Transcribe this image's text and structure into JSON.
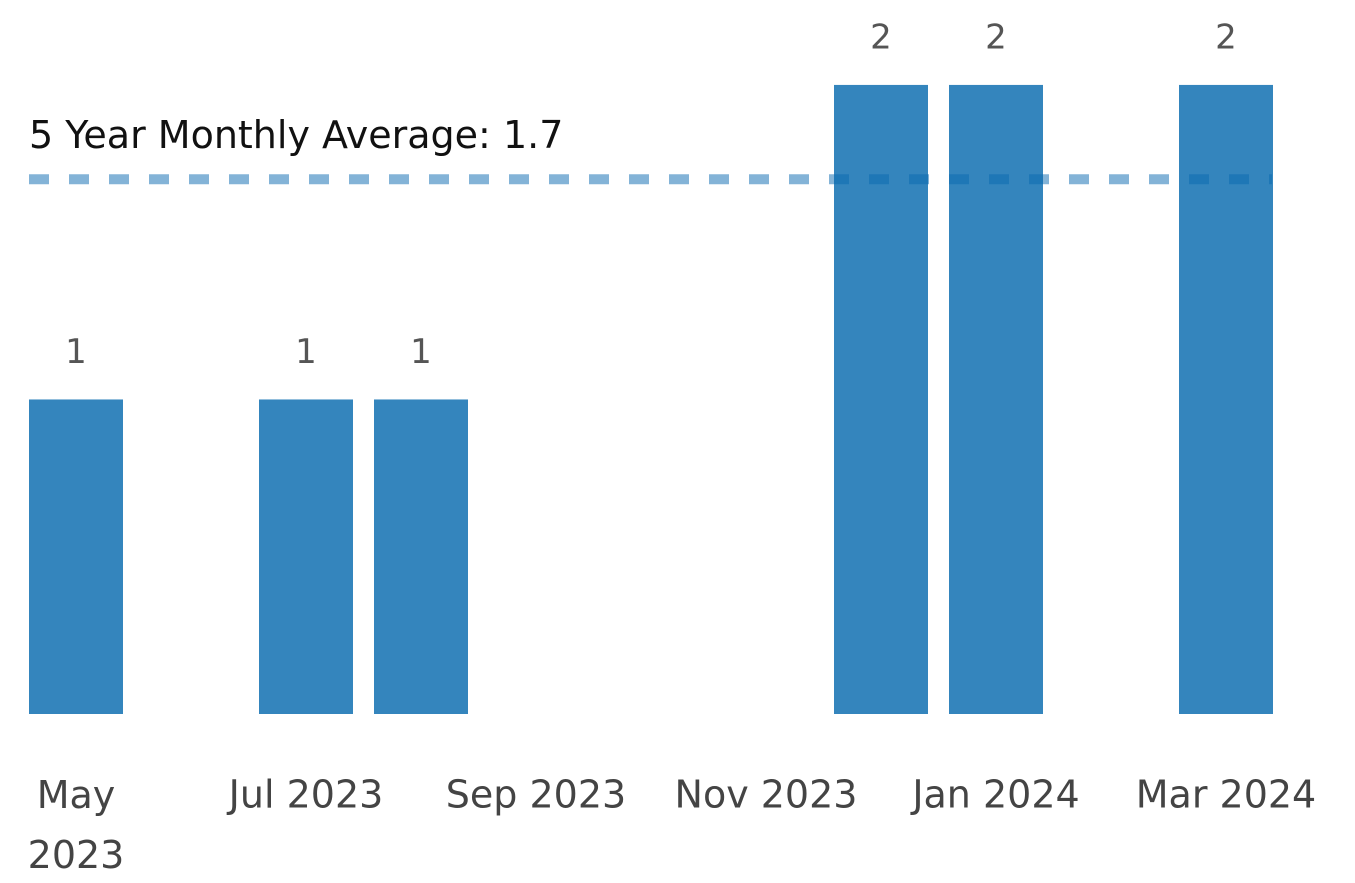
{
  "chart_data": {
    "type": "bar",
    "categories": [
      "May 2023",
      null,
      "Jul 2023",
      null,
      "Sep 2023",
      null,
      "Nov 2023",
      null,
      "Jan 2024",
      null,
      "Mar 2024"
    ],
    "values": [
      1,
      null,
      1,
      1,
      null,
      null,
      null,
      2,
      2,
      null,
      2
    ],
    "color": "#3485bd",
    "ylim": [
      0,
      2.27
    ],
    "reference_line": {
      "value": 1.7,
      "label": "5 Year Monthly Average: 1.7",
      "color": "#0a6ab0"
    }
  }
}
